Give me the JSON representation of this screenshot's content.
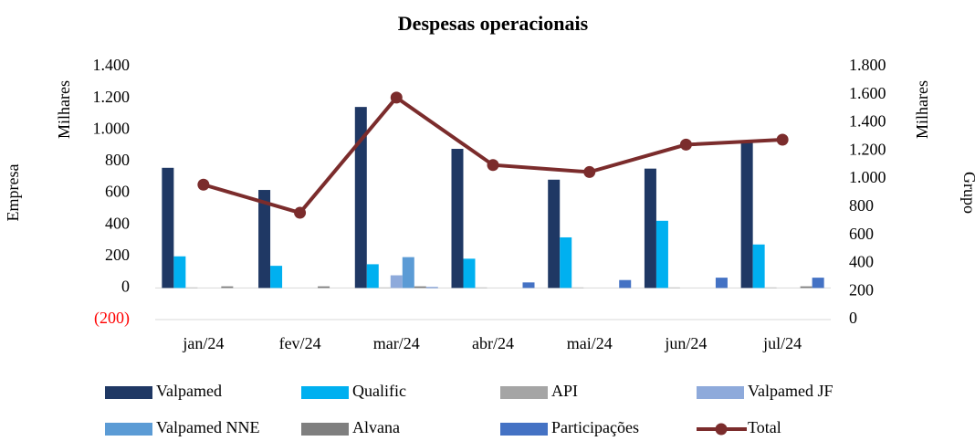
{
  "chart_data": {
    "type": "bar",
    "title": "Despesas operacionais",
    "y_label": "Empresa",
    "y_unit_label": "Milhares",
    "y2_label": "Grupo",
    "y2_unit_label": "Milhares",
    "categories": [
      "jan/24",
      "fev/24",
      "mar/24",
      "abr/24",
      "mai/24",
      "jun/24",
      "jul/24"
    ],
    "series": [
      {
        "name": "Valpamed",
        "color": "#1f3864",
        "values": [
          760,
          620,
          1145,
          880,
          685,
          755,
          935
        ]
      },
      {
        "name": "Qualific",
        "color": "#00b0f0",
        "values": [
          200,
          140,
          150,
          185,
          320,
          425,
          275
        ]
      },
      {
        "name": "API",
        "color": "#a5a5a5",
        "values": [
          3,
          0,
          3,
          3,
          3,
          3,
          3
        ]
      },
      {
        "name": "Valpamed JF",
        "color": "#8eaadb",
        "values": [
          0,
          0,
          80,
          0,
          0,
          0,
          0
        ]
      },
      {
        "name": "Valpamed NNE",
        "color": "#5b9bd5",
        "values": [
          0,
          0,
          195,
          0,
          0,
          0,
          0
        ]
      },
      {
        "name": "Alvana",
        "color": "#7f7f7f",
        "values": [
          10,
          10,
          10,
          0,
          0,
          0,
          10
        ]
      },
      {
        "name": "Participações",
        "color": "#4472c4",
        "values": [
          0,
          0,
          5,
          35,
          50,
          65,
          65
        ]
      },
      {
        "name": "Total",
        "color": "#7b2c2c",
        "type": "line",
        "axis": "y2",
        "values": [
          960,
          760,
          1580,
          1100,
          1050,
          1245,
          1280
        ]
      }
    ],
    "ylim": [
      -200,
      1400
    ],
    "yticks": [
      {
        "value": -200,
        "label": "(200)"
      },
      0,
      200,
      400,
      600,
      800,
      {
        "value": 1000,
        "label": "1.000"
      },
      {
        "value": 1200,
        "label": "1.200"
      },
      {
        "value": 1400,
        "label": "1.400"
      }
    ],
    "negative_tick_color": "#ff0000",
    "y2lim": [
      0,
      1800
    ],
    "y2ticks": [
      0,
      200,
      400,
      600,
      800,
      {
        "value": 1000,
        "label": "1.000"
      },
      {
        "value": 1200,
        "label": "1.200"
      },
      {
        "value": 1400,
        "label": "1.400"
      },
      {
        "value": 1600,
        "label": "1.600"
      },
      {
        "value": 1800,
        "label": "1.800"
      }
    ],
    "grid": false
  }
}
